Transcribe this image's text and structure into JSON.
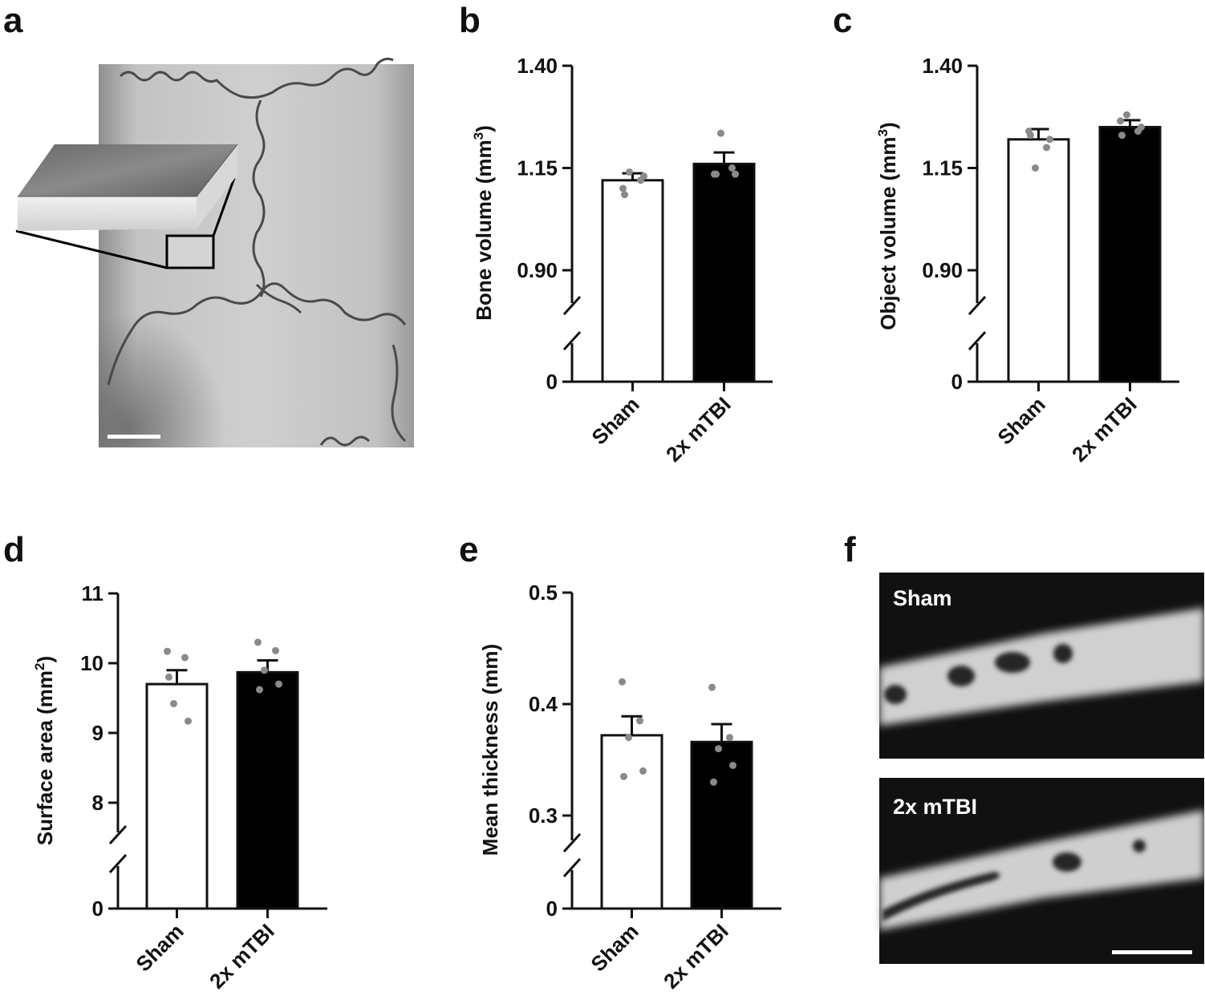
{
  "panels": {
    "a": "a",
    "b": "b",
    "c": "c",
    "d": "d",
    "e": "e",
    "f": "f"
  },
  "ct_images": {
    "top_label": "Sham",
    "bottom_label": "2x mTBI"
  },
  "colors": {
    "sham_bar": "#ffffff",
    "mtbi_bar": "#000000",
    "points": "#8a8a8a",
    "axis": "#111111"
  },
  "chart_data": [
    {
      "id": "b",
      "type": "bar",
      "categories": [
        "Sham",
        "2x mTBI"
      ],
      "values": [
        1.12,
        1.16
      ],
      "errors": [
        0.017,
        0.028
      ],
      "points": [
        [
          1.1,
          1.12,
          1.14,
          1.13,
          1.085
        ],
        [
          1.135,
          1.15,
          1.235,
          1.135,
          1.135
        ]
      ],
      "ylabel": "Bone volume (mm",
      "ylabel_sup": "3",
      "ylabel_end": ")",
      "ticks": [
        "1.40",
        "1.15",
        "0.90"
      ],
      "ylim": [
        0.9,
        1.4
      ],
      "zero_label": "0",
      "axis_break": true
    },
    {
      "id": "c",
      "type": "bar",
      "categories": [
        "Sham",
        "2x mTBI"
      ],
      "values": [
        1.22,
        1.25
      ],
      "errors": [
        0.025,
        0.017
      ],
      "points": [
        [
          1.24,
          1.2,
          1.15,
          1.22,
          1.23
        ],
        [
          1.265,
          1.24,
          1.28,
          1.25,
          1.23
        ]
      ],
      "ylabel": "Object volume (mm",
      "ylabel_sup": "3",
      "ylabel_end": ")",
      "ticks": [
        "1.40",
        "1.15",
        "0.90"
      ],
      "ylim": [
        0.9,
        1.4
      ],
      "zero_label": "0",
      "axis_break": true
    },
    {
      "id": "d",
      "type": "bar",
      "categories": [
        "Sham",
        "2x mTBI"
      ],
      "values": [
        9.7,
        9.87
      ],
      "errors": [
        0.2,
        0.17
      ],
      "points": [
        [
          10.17,
          10.08,
          9.42,
          9.17,
          9.8
        ],
        [
          10.3,
          10.18,
          9.9,
          9.7,
          9.62
        ]
      ],
      "ylabel": "Surface area (mm",
      "ylabel_sup": "2",
      "ylabel_end": ")",
      "ticks": [
        "11",
        "10",
        "9",
        "8"
      ],
      "ylim": [
        8,
        11
      ],
      "zero_label": "0",
      "axis_break": true
    },
    {
      "id": "e",
      "type": "bar",
      "categories": [
        "Sham",
        "2x mTBI"
      ],
      "values": [
        0.372,
        0.366
      ],
      "errors": [
        0.017,
        0.016
      ],
      "points": [
        [
          0.42,
          0.385,
          0.37,
          0.34,
          0.335
        ],
        [
          0.415,
          0.37,
          0.36,
          0.345,
          0.33
        ]
      ],
      "ylabel": "Mean thickness (mm)",
      "ylabel_sup": "",
      "ylabel_end": "",
      "ticks": [
        "0.5",
        "0.4",
        "0.3"
      ],
      "ylim": [
        0.3,
        0.5
      ],
      "zero_label": "0",
      "axis_break": true
    }
  ]
}
